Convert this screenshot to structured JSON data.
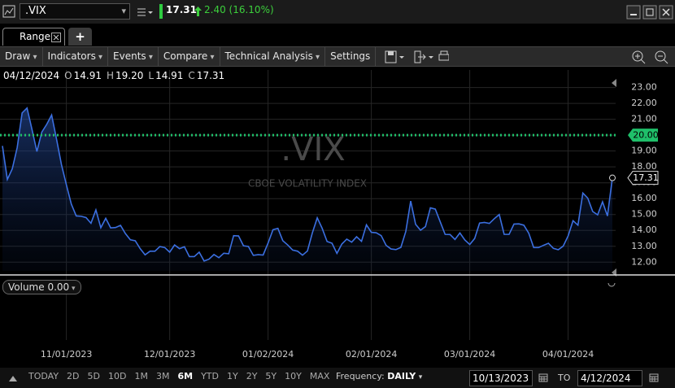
{
  "window": {
    "symbol": ".VIX",
    "last": "17.31",
    "change": "2.40 (16.10%)"
  },
  "tabs": {
    "active": "Range",
    "new_tab": "+"
  },
  "menu": [
    {
      "label": "Draw",
      "dropdown": true
    },
    {
      "label": "Indicators",
      "dropdown": true
    },
    {
      "label": "Events",
      "dropdown": true
    },
    {
      "label": "Compare",
      "dropdown": true
    },
    {
      "label": "Technical Analysis",
      "dropdown": true
    },
    {
      "label": "Settings",
      "dropdown": false
    }
  ],
  "ohlc": {
    "date": "04/12/2024",
    "items": [
      {
        "key": "O",
        "value": "14.91"
      },
      {
        "key": "H",
        "value": "19.20"
      },
      {
        "key": "L",
        "value": "14.91"
      },
      {
        "key": "C",
        "value": "17.31"
      }
    ]
  },
  "chart_data": {
    "type": "line",
    "title": ".VIX",
    "subtitle": "CBOE VOLATILITY INDEX",
    "color": "#3b6fe0",
    "grid": true,
    "categories": [
      null,
      null,
      null,
      null,
      null,
      null,
      null,
      null,
      null,
      null,
      null,
      null,
      null,
      "11/01/2023",
      null,
      null,
      null,
      null,
      null,
      null,
      null,
      null,
      null,
      null,
      null,
      null,
      null,
      null,
      null,
      null,
      null,
      null,
      null,
      null,
      "12/01/2023",
      null,
      null,
      null,
      null,
      null,
      null,
      null,
      null,
      null,
      null,
      null,
      null,
      null,
      null,
      null,
      null,
      null,
      null,
      null,
      "01/02/2024",
      null,
      null,
      null,
      null,
      null,
      null,
      null,
      null,
      null,
      null,
      null,
      null,
      null,
      null,
      null,
      null,
      null,
      null,
      null,
      null,
      "02/01/2024",
      null,
      null,
      null,
      null,
      null,
      null,
      null,
      null,
      null,
      null,
      null,
      null,
      null,
      null,
      null,
      null,
      null,
      null,
      null,
      "03/01/2024",
      null,
      null,
      null,
      null,
      null,
      null,
      null,
      null,
      null,
      null,
      null,
      null,
      null,
      null,
      null,
      null,
      null,
      null,
      null,
      "04/01/2024",
      null,
      null,
      null,
      null,
      null,
      null,
      null,
      null,
      null
    ],
    "values": [
      19.32,
      17.21,
      17.88,
      19.22,
      21.4,
      21.71,
      20.37,
      18.97,
      20.19,
      20.68,
      21.27,
      19.75,
      18.14,
      16.87,
      15.66,
      14.91,
      14.89,
      14.81,
      14.45,
      15.29,
      14.17,
      14.76,
      14.16,
      14.18,
      14.32,
      13.8,
      13.41,
      13.35,
      12.85,
      12.46,
      12.69,
      12.69,
      12.98,
      12.92,
      12.63,
      13.08,
      12.85,
      12.97,
      12.35,
      12.35,
      12.63,
      12.07,
      12.19,
      12.48,
      12.28,
      12.56,
      12.53,
      13.67,
      13.65,
      13.03,
      12.99,
      12.43,
      12.47,
      12.45,
      13.2,
      14.04,
      14.13,
      13.35,
      13.08,
      12.76,
      12.69,
      12.44,
      12.7,
      13.84,
      14.79,
      14.13,
      13.3,
      13.19,
      12.55,
      13.14,
      13.45,
      13.26,
      13.6,
      13.31,
      14.35,
      13.88,
      13.85,
      13.67,
      13.06,
      12.83,
      12.79,
      12.93,
      13.93,
      15.85,
      14.38,
      14.01,
      14.24,
      15.42,
      15.34,
      14.54,
      13.75,
      13.74,
      13.43,
      13.84,
      13.4,
      13.11,
      13.49,
      14.46,
      14.5,
      14.44,
      14.74,
      15.0,
      13.75,
      13.75,
      14.4,
      14.41,
      14.33,
      13.82,
      12.92,
      12.92,
      13.06,
      13.19,
      12.87,
      12.78,
      13.01,
      13.65,
      14.61,
      14.33,
      16.35,
      16.03,
      15.19,
      14.98,
      15.8,
      14.91,
      17.31
    ],
    "ylim": [
      11.45,
      23.8
    ],
    "yticks": [
      {
        "value": 12,
        "label": "12.00"
      },
      {
        "value": 13,
        "label": "13.00"
      },
      {
        "value": 14,
        "label": "14.00"
      },
      {
        "value": 15,
        "label": "15.00"
      },
      {
        "value": 16,
        "label": "16.00"
      },
      {
        "value": 17,
        "label": "17.00"
      },
      {
        "value": 18,
        "label": "18.00"
      },
      {
        "value": 19,
        "label": "19.00"
      },
      {
        "value": 20,
        "label": "20.00"
      },
      {
        "value": 21,
        "label": "21.00"
      },
      {
        "value": 22,
        "label": "22.00"
      },
      {
        "value": 23,
        "label": "23.00"
      }
    ],
    "reference_line": {
      "value": 20,
      "label": "20.00",
      "color": "#1fbf6a"
    }
  },
  "volume": {
    "label": "Volume",
    "value": "0.00"
  },
  "footer": {
    "ranges": [
      "TODAY",
      "2D",
      "5D",
      "10D",
      "1M",
      "3M",
      "6M",
      "YTD",
      "1Y",
      "2Y",
      "5Y",
      "10Y",
      "MAX"
    ],
    "active_range": 6,
    "frequency_label": "Frequency:",
    "frequency": "DAILY",
    "from": "10/13/2023",
    "to_label": "TO",
    "to": "4/12/2024"
  }
}
